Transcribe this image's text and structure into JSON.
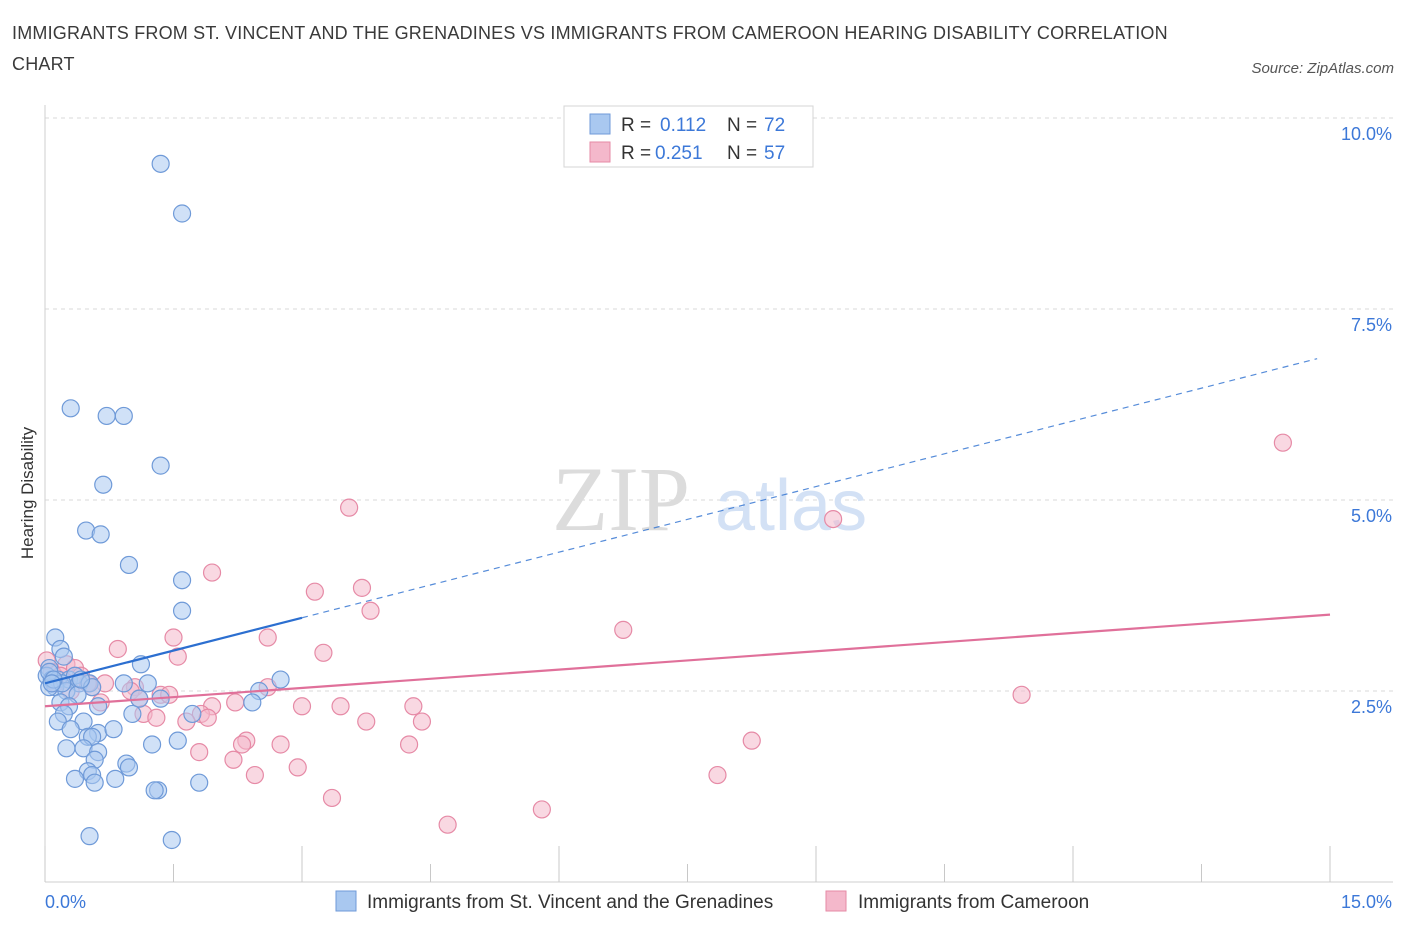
{
  "title": "IMMIGRANTS FROM ST. VINCENT AND THE GRENADINES VS IMMIGRANTS FROM CAMEROON HEARING DISABILITY CORRELATION CHART",
  "source": "Source: ZipAtlas.com",
  "watermark": {
    "zip": "ZIP",
    "atlas": "atlas"
  },
  "colors": {
    "blue_fill": "#a9c8f0",
    "blue_stroke": "#6f9ad8",
    "blue_line": "#2c6fd0",
    "pink_fill": "#f4b8cb",
    "pink_stroke": "#e68aa6",
    "pink_line": "#e0709a",
    "tick_text": "#3c78d8",
    "grid": "#d9d9d9"
  },
  "legend_top": {
    "rows": [
      {
        "r_label": "R =",
        "r_value": "0.112",
        "n_label": "N =",
        "n_value": "72"
      },
      {
        "r_label": "R =",
        "r_value": "0.251",
        "n_label": "N =",
        "n_value": "57"
      }
    ]
  },
  "legend_bottom": {
    "items": [
      "Immigrants from St. Vincent and the Grenadines",
      "Immigrants from Cameroon"
    ]
  },
  "chart_data": {
    "type": "scatter",
    "xlabel": "",
    "ylabel": "Hearing Disability",
    "xlim": [
      0,
      15
    ],
    "ylim": [
      0,
      10
    ],
    "x_tick_labels": [
      "0.0%",
      "15.0%"
    ],
    "y_ticks": [
      2.5,
      5.0,
      7.5,
      10.0
    ],
    "y_tick_labels": [
      "2.5%",
      "5.0%",
      "7.5%",
      "10.0%"
    ],
    "grid": "horizontal dashed",
    "legend_placement": "top-center and bottom",
    "series": [
      {
        "name": "Immigrants from St. Vincent and the Grenadines",
        "r": 0.112,
        "n": 72,
        "trend": {
          "x0": 0,
          "y0": 2.6,
          "x_solid_end": 3.0,
          "x1": 14.85,
          "y1": 6.85
        },
        "points": [
          [
            1.35,
            9.4
          ],
          [
            1.6,
            8.75
          ],
          [
            0.3,
            6.2
          ],
          [
            0.72,
            6.1
          ],
          [
            0.92,
            6.1
          ],
          [
            1.35,
            5.45
          ],
          [
            0.68,
            5.2
          ],
          [
            0.48,
            4.6
          ],
          [
            0.65,
            4.55
          ],
          [
            0.98,
            4.15
          ],
          [
            1.6,
            3.95
          ],
          [
            1.6,
            3.55
          ],
          [
            0.12,
            3.2
          ],
          [
            0.18,
            3.05
          ],
          [
            0.22,
            2.95
          ],
          [
            1.12,
            2.85
          ],
          [
            0.05,
            2.8
          ],
          [
            0.02,
            2.7
          ],
          [
            0.08,
            2.65
          ],
          [
            0.15,
            2.65
          ],
          [
            0.28,
            2.65
          ],
          [
            0.35,
            2.7
          ],
          [
            0.4,
            2.6
          ],
          [
            0.52,
            2.6
          ],
          [
            0.12,
            2.55
          ],
          [
            0.05,
            2.55
          ],
          [
            0.25,
            2.5
          ],
          [
            0.2,
            2.6
          ],
          [
            0.55,
            2.55
          ],
          [
            0.92,
            2.6
          ],
          [
            1.2,
            2.6
          ],
          [
            2.75,
            2.65
          ],
          [
            0.38,
            2.45
          ],
          [
            0.18,
            2.35
          ],
          [
            0.62,
            2.3
          ],
          [
            1.35,
            2.4
          ],
          [
            1.1,
            2.4
          ],
          [
            2.5,
            2.5
          ],
          [
            2.42,
            2.35
          ],
          [
            0.28,
            2.3
          ],
          [
            0.22,
            2.2
          ],
          [
            1.02,
            2.2
          ],
          [
            1.72,
            2.2
          ],
          [
            0.15,
            2.1
          ],
          [
            0.45,
            2.1
          ],
          [
            0.3,
            2.0
          ],
          [
            0.62,
            1.95
          ],
          [
            0.8,
            2.0
          ],
          [
            0.5,
            1.9
          ],
          [
            0.55,
            1.9
          ],
          [
            0.25,
            1.75
          ],
          [
            0.45,
            1.75
          ],
          [
            0.62,
            1.7
          ],
          [
            1.25,
            1.8
          ],
          [
            1.55,
            1.85
          ],
          [
            0.58,
            1.6
          ],
          [
            0.95,
            1.55
          ],
          [
            0.98,
            1.5
          ],
          [
            0.5,
            1.45
          ],
          [
            0.55,
            1.4
          ],
          [
            0.35,
            1.35
          ],
          [
            0.82,
            1.35
          ],
          [
            0.58,
            1.3
          ],
          [
            1.8,
            1.3
          ],
          [
            1.32,
            1.2
          ],
          [
            1.28,
            1.2
          ],
          [
            0.52,
            0.6
          ],
          [
            1.48,
            0.55
          ],
          [
            0.05,
            2.75
          ],
          [
            0.1,
            2.65
          ],
          [
            0.42,
            2.65
          ],
          [
            0.08,
            2.6
          ]
        ]
      },
      {
        "name": "Immigrants from Cameroon",
        "r": 0.251,
        "n": 57,
        "trend": {
          "x0": 0,
          "y0": 2.3,
          "x1": 15.0,
          "y1": 3.5
        },
        "points": [
          [
            14.45,
            5.75
          ],
          [
            3.55,
            4.9
          ],
          [
            9.2,
            4.75
          ],
          [
            1.95,
            4.05
          ],
          [
            3.15,
            3.8
          ],
          [
            3.7,
            3.85
          ],
          [
            3.8,
            3.55
          ],
          [
            6.75,
            3.3
          ],
          [
            2.6,
            3.2
          ],
          [
            1.5,
            3.2
          ],
          [
            0.85,
            3.05
          ],
          [
            3.25,
            3.0
          ],
          [
            1.55,
            2.95
          ],
          [
            0.25,
            2.85
          ],
          [
            0.35,
            2.8
          ],
          [
            0.08,
            2.75
          ],
          [
            0.18,
            2.7
          ],
          [
            0.42,
            2.7
          ],
          [
            0.7,
            2.6
          ],
          [
            0.55,
            2.55
          ],
          [
            1.05,
            2.55
          ],
          [
            2.6,
            2.55
          ],
          [
            1.0,
            2.5
          ],
          [
            1.35,
            2.45
          ],
          [
            1.45,
            2.45
          ],
          [
            0.65,
            2.35
          ],
          [
            1.1,
            2.4
          ],
          [
            1.95,
            2.3
          ],
          [
            2.22,
            2.35
          ],
          [
            3.0,
            2.3
          ],
          [
            3.45,
            2.3
          ],
          [
            4.3,
            2.3
          ],
          [
            11.4,
            2.45
          ],
          [
            1.15,
            2.2
          ],
          [
            1.3,
            2.15
          ],
          [
            1.82,
            2.2
          ],
          [
            1.9,
            2.15
          ],
          [
            1.65,
            2.1
          ],
          [
            3.75,
            2.1
          ],
          [
            4.4,
            2.1
          ],
          [
            2.35,
            1.85
          ],
          [
            2.3,
            1.8
          ],
          [
            2.75,
            1.8
          ],
          [
            4.25,
            1.8
          ],
          [
            8.25,
            1.85
          ],
          [
            1.8,
            1.7
          ],
          [
            2.2,
            1.6
          ],
          [
            2.95,
            1.5
          ],
          [
            2.45,
            1.4
          ],
          [
            7.85,
            1.4
          ],
          [
            3.35,
            1.1
          ],
          [
            5.8,
            0.95
          ],
          [
            4.7,
            0.75
          ],
          [
            0.02,
            2.9
          ],
          [
            0.12,
            2.6
          ],
          [
            0.5,
            2.6
          ],
          [
            0.3,
            2.5
          ]
        ]
      }
    ]
  }
}
